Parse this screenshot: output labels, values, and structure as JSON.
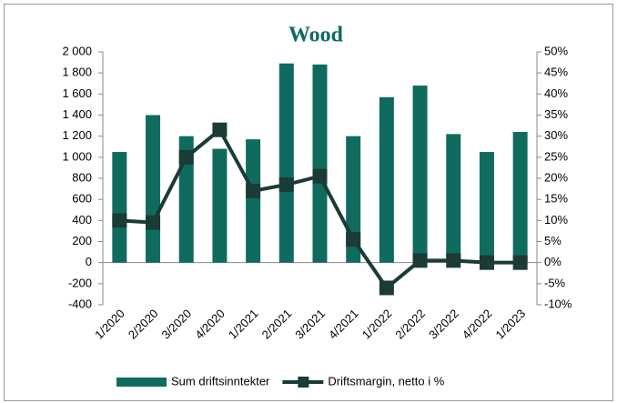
{
  "chart_data": {
    "type": "bar",
    "title": "Wood",
    "categories": [
      "1/2020",
      "2/2020",
      "3/2020",
      "4/2020",
      "1/2021",
      "2/2021",
      "3/2021",
      "4/2021",
      "1/2022",
      "2/2022",
      "3/2022",
      "4/2022",
      "1/2023"
    ],
    "series": [
      {
        "name": "Sum driftsinntekter",
        "type": "bar",
        "color": "#106b5f",
        "values": [
          1050,
          1400,
          1200,
          1080,
          1170,
          1890,
          1880,
          1200,
          1570,
          1680,
          1220,
          1050,
          1240
        ]
      },
      {
        "name": "Driftsmargin, netto i %",
        "type": "line",
        "axis": "y2",
        "color": "#1b3b36",
        "values": [
          10,
          9.5,
          25,
          31.5,
          17,
          18.5,
          20.5,
          5.5,
          -6,
          0.5,
          0.5,
          0,
          0
        ]
      }
    ],
    "ylim": [
      -400,
      2000
    ],
    "yticks": [
      {
        "value": 2000,
        "label": "2 000"
      },
      {
        "value": 1800,
        "label": "1 800"
      },
      {
        "value": 1600,
        "label": "1 600"
      },
      {
        "value": 1400,
        "label": "1 400"
      },
      {
        "value": 1200,
        "label": "1 200"
      },
      {
        "value": 1000,
        "label": "1 000"
      },
      800,
      600,
      400,
      200,
      0,
      -200,
      -400
    ],
    "y2lim": [
      -10,
      50
    ],
    "y2ticks": [
      {
        "value": 50,
        "label": "50%"
      },
      {
        "value": 45,
        "label": "45%"
      },
      {
        "value": 40,
        "label": "40%"
      },
      {
        "value": 35,
        "label": "35%"
      },
      {
        "value": 30,
        "label": "30%"
      },
      {
        "value": 25,
        "label": "25%"
      },
      {
        "value": 20,
        "label": "20%"
      },
      {
        "value": 15,
        "label": "15%"
      },
      {
        "value": 10,
        "label": "10%"
      },
      {
        "value": 5,
        "label": "5%"
      },
      {
        "value": 0,
        "label": "0%"
      },
      {
        "value": -5,
        "label": "-5%"
      },
      {
        "value": -10,
        "label": "-10%"
      }
    ],
    "grid": false,
    "legend": "bottom"
  }
}
